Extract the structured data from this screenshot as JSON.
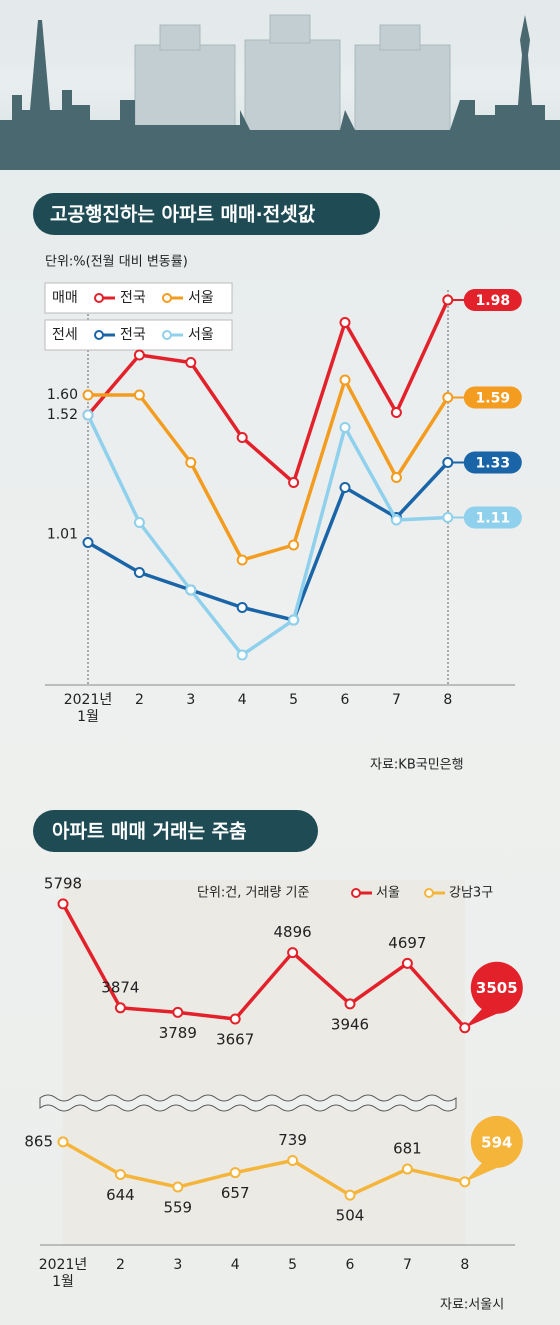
{
  "chart_data": [
    {
      "type": "line",
      "title": "고공행진하는 아파트 매매·전셋값",
      "subtitle": "단위:%(전월 대비 변동률)",
      "categories": [
        "2021년\n1월",
        "2",
        "3",
        "4",
        "5",
        "6",
        "7",
        "8"
      ],
      "ylim": [
        0.44,
        2.04
      ],
      "series_groups": [
        {
          "name": "매매",
          "series": [
            {
              "name": "전국",
              "color": "#e3212a",
              "values": [
                1.52,
                1.76,
                1.73,
                1.43,
                1.25,
                1.89,
                1.53,
                1.98
              ],
              "value_labels": [
                "1.52",
                null,
                null,
                null,
                null,
                null,
                null,
                "1.98"
              ]
            },
            {
              "name": "서울",
              "color": "#f39c1f",
              "values": [
                1.6,
                1.6,
                1.33,
                0.94,
                1.0,
                1.66,
                1.27,
                1.59
              ],
              "value_labels": [
                "1.60",
                null,
                null,
                null,
                null,
                null,
                null,
                "1.59"
              ]
            }
          ]
        },
        {
          "name": "전세",
          "series": [
            {
              "name": "전국",
              "color": "#1a64a8",
              "values": [
                1.01,
                0.89,
                0.82,
                0.75,
                0.7,
                1.23,
                1.11,
                1.33
              ],
              "value_labels": [
                "1.01",
                null,
                null,
                null,
                null,
                null,
                null,
                "1.33"
              ]
            },
            {
              "name": "서울",
              "color": "#8fd0ec",
              "values": [
                1.52,
                1.09,
                0.82,
                0.56,
                0.7,
                1.47,
                1.1,
                1.11
              ],
              "value_labels": [
                null,
                null,
                null,
                null,
                null,
                null,
                null,
                "1.11"
              ]
            }
          ]
        }
      ],
      "source": "자료:KB국민은행"
    },
    {
      "type": "line",
      "title": "아파트 매매 거래는 주춤",
      "subtitle": "단위:건, 거래량 기준",
      "categories": [
        "2021년\n1월",
        "2",
        "3",
        "4",
        "5",
        "6",
        "7",
        "8"
      ],
      "series": [
        {
          "name": "서울",
          "color": "#e3212a",
          "values": [
            5798,
            3874,
            3789,
            3667,
            4896,
            3946,
            4697,
            3505
          ],
          "ylim": [
            3000,
            6000
          ]
        },
        {
          "name": "강남3구",
          "color": "#f5b43a",
          "values": [
            865,
            644,
            559,
            657,
            739,
            504,
            681,
            594
          ],
          "ylim": [
            200,
            1000
          ]
        }
      ],
      "source": "자료:서울시"
    }
  ]
}
